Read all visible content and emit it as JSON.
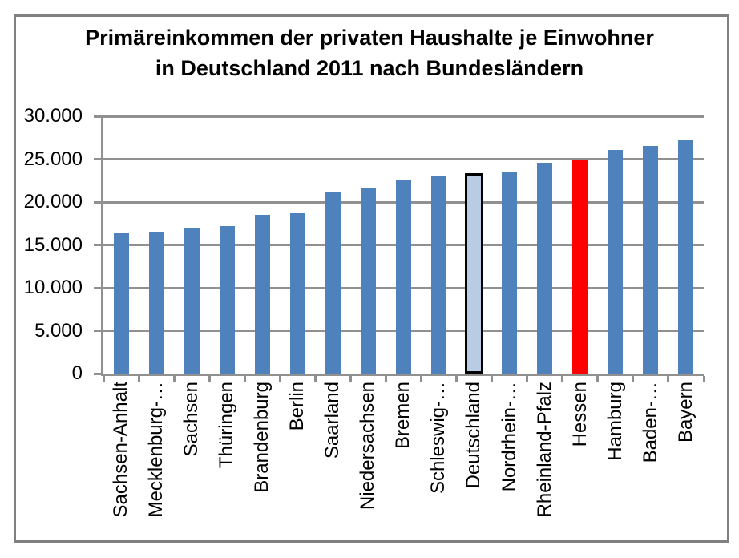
{
  "title": {
    "line1": "Primäreinkommen der privaten Haushalte je Einwohner",
    "line2": "in Deutschland 2011 nach Bundesländern"
  },
  "colors": {
    "bar_default": "#4f81bd",
    "bar_deutschland_fill": "#b8cce4",
    "bar_deutschland_border": "#000000",
    "bar_hessen": "#ff0000",
    "gridline": "#909090",
    "frame_border": "#808080",
    "text": "#000000",
    "background": "#ffffff"
  },
  "chart_data": {
    "type": "bar",
    "title": "Primäreinkommen der privaten Haushalte je Einwohner in Deutschland 2011 nach Bundesländern",
    "categories": [
      "Sachsen-Anhalt",
      "Mecklenburg-…",
      "Sachsen",
      "Thüringen",
      "Brandenburg",
      "Berlin",
      "Saarland",
      "Niedersachsen",
      "Bremen",
      "Schleswig-…",
      "Deutschland",
      "Nordrhein-…",
      "Rheinland-Pfalz",
      "Hessen",
      "Hamburg",
      "Baden-…",
      "Bayern"
    ],
    "values": [
      16400,
      16500,
      17050,
      17200,
      18550,
      18700,
      21100,
      21700,
      22550,
      22950,
      23350,
      23500,
      24550,
      24950,
      26100,
      26500,
      27200
    ],
    "xlabel": "",
    "ylabel": "",
    "ylim": [
      0,
      30000
    ],
    "ytick_step": 5000,
    "ytick_labels": [
      "30.000",
      "25.000",
      "20.000",
      "15.000",
      "10.000",
      "5.000",
      "0"
    ],
    "grid": true,
    "legend_position": "none",
    "bar_style": {
      "default_fill": "#4f81bd",
      "highlights": [
        {
          "category": "Deutschland",
          "index": 10,
          "fill": "#b8cce4",
          "border": "#000000"
        },
        {
          "category": "Hessen",
          "index": 13,
          "fill": "#ff0000"
        }
      ]
    }
  }
}
